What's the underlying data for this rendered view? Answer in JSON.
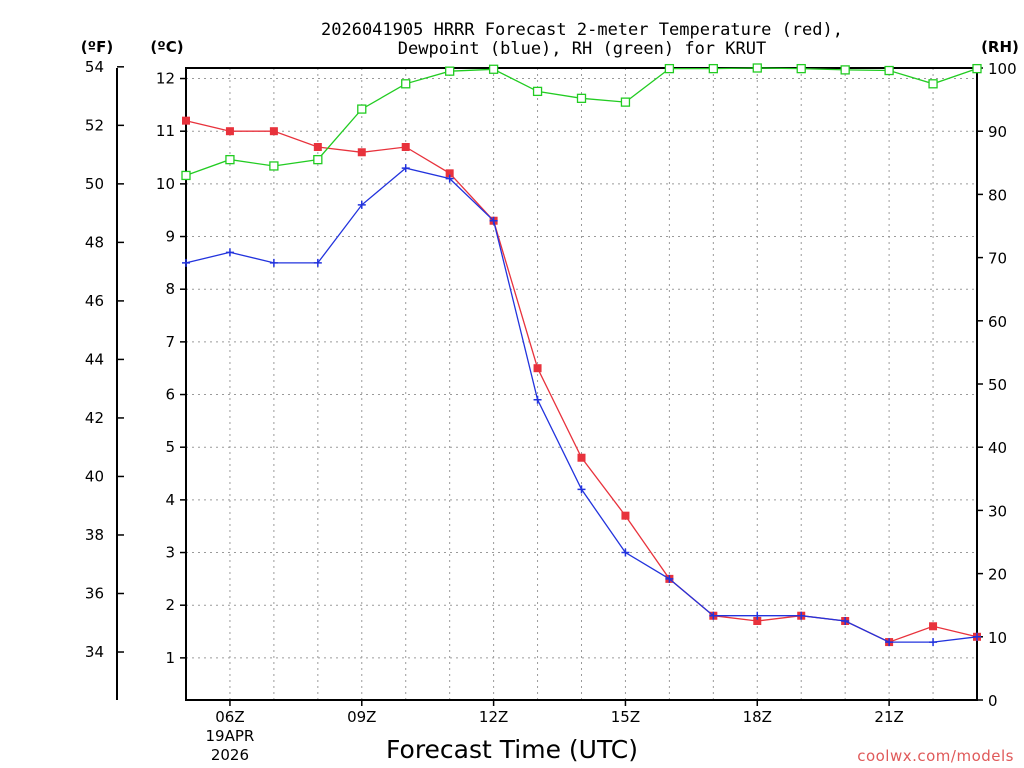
{
  "chart_data": {
    "type": "line",
    "title_line1": "2026041905 HRRR Forecast 2-meter Temperature (red),",
    "title_line2": "Dewpoint (blue), RH (green) for KRUT",
    "xlabel": "Forecast Time (UTC)",
    "credit": "coolwx.com/models",
    "units": {
      "fahrenheit": "(ºF)",
      "celsius": "(ºC)",
      "rh": "(RH)"
    },
    "x": [
      5,
      6,
      7,
      8,
      9,
      10,
      11,
      12,
      13,
      14,
      15,
      16,
      17,
      18,
      19,
      20,
      21,
      22,
      23
    ],
    "xlim": [
      5,
      23
    ],
    "x_ticks": [
      {
        "x": 6,
        "label": "06Z",
        "sub1": "19APR",
        "sub2": "2026"
      },
      {
        "x": 9,
        "label": "09Z"
      },
      {
        "x": 12,
        "label": "12Z"
      },
      {
        "x": 15,
        "label": "15Z"
      },
      {
        "x": 18,
        "label": "18Z"
      },
      {
        "x": 21,
        "label": "21Z"
      }
    ],
    "ylim_c": [
      0.2,
      12.2
    ],
    "y_ticks_c": [
      "1",
      "2",
      "3",
      "4",
      "5",
      "6",
      "7",
      "8",
      "9",
      "10",
      "11",
      "12"
    ],
    "y_ticks_f": [
      "34",
      "36",
      "38",
      "40",
      "42",
      "44",
      "46",
      "48",
      "50",
      "52",
      "54"
    ],
    "ylim_rh": [
      0,
      100
    ],
    "y_ticks_rh": [
      "0",
      "10",
      "20",
      "30",
      "40",
      "50",
      "60",
      "70",
      "80",
      "90",
      "100"
    ],
    "series": [
      {
        "name": "Temperature",
        "color": "#e8323c",
        "marker": "filled-square",
        "axis": "celsius",
        "values": [
          11.2,
          11.0,
          11.0,
          10.7,
          10.6,
          10.7,
          10.2,
          9.3,
          6.5,
          4.8,
          3.7,
          2.5,
          1.8,
          1.7,
          1.8,
          1.7,
          1.3,
          1.6,
          1.4
        ]
      },
      {
        "name": "Dewpoint",
        "color": "#2233dd",
        "marker": "plus",
        "axis": "celsius",
        "values": [
          8.5,
          8.7,
          8.5,
          8.5,
          9.6,
          10.3,
          10.1,
          9.3,
          5.9,
          4.2,
          3.0,
          2.5,
          1.8,
          1.8,
          1.8,
          1.7,
          1.3,
          1.3,
          1.4
        ]
      },
      {
        "name": "RH",
        "color": "#22cc22",
        "marker": "open-square",
        "axis": "rh",
        "values": [
          83,
          85.5,
          84.5,
          85.5,
          93.5,
          97.5,
          99.5,
          99.8,
          96.3,
          95.2,
          94.6,
          99.9,
          99.9,
          100,
          99.9,
          99.7,
          99.6,
          97.5,
          99.9
        ]
      }
    ]
  }
}
